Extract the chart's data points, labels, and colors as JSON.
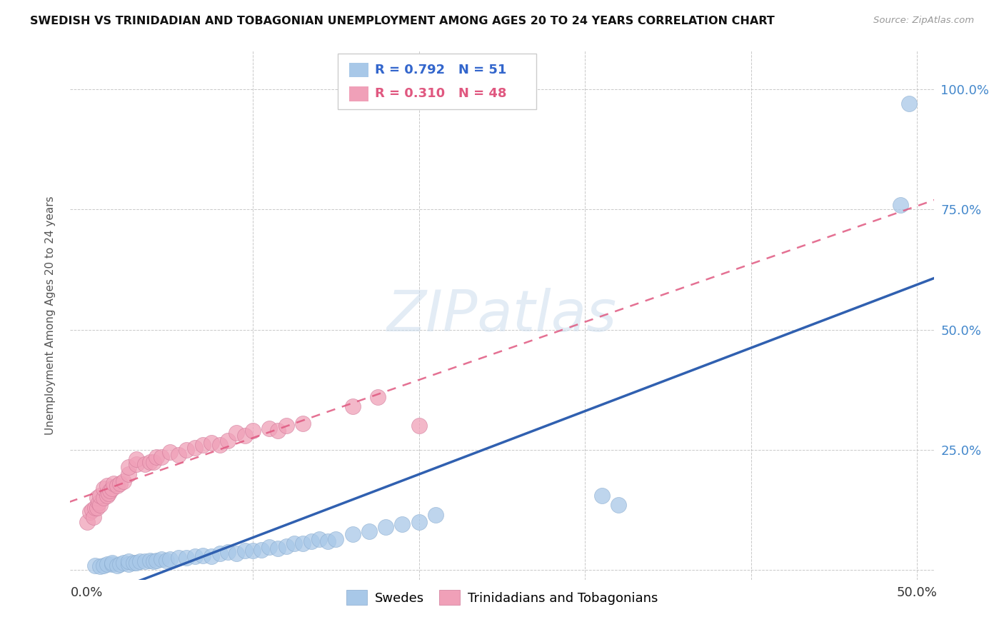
{
  "title": "SWEDISH VS TRINIDADIAN AND TOBAGONIAN UNEMPLOYMENT AMONG AGES 20 TO 24 YEARS CORRELATION CHART",
  "source": "Source: ZipAtlas.com",
  "ylabel": "Unemployment Among Ages 20 to 24 years",
  "legend_r_blue": "R = 0.792",
  "legend_n_blue": "N = 51",
  "legend_r_pink": "R = 0.310",
  "legend_n_pink": "N = 48",
  "legend_label_blue": "Swedes",
  "legend_label_pink": "Trinidadians and Tobagonians",
  "blue_color": "#A8C8E8",
  "pink_color": "#F0A0B8",
  "blue_line_color": "#3060B0",
  "pink_line_color": "#E05880",
  "background_color": "#FFFFFF",
  "grid_color": "#BBBBBB",
  "watermark": "ZIPatlas",
  "blue_x": [
    0.005,
    0.008,
    0.01,
    0.012,
    0.015,
    0.015,
    0.018,
    0.02,
    0.022,
    0.025,
    0.025,
    0.028,
    0.03,
    0.032,
    0.035,
    0.038,
    0.04,
    0.042,
    0.045,
    0.048,
    0.05,
    0.055,
    0.06,
    0.065,
    0.07,
    0.075,
    0.08,
    0.085,
    0.09,
    0.095,
    0.1,
    0.105,
    0.11,
    0.115,
    0.12,
    0.125,
    0.13,
    0.135,
    0.14,
    0.145,
    0.15,
    0.16,
    0.17,
    0.18,
    0.19,
    0.2,
    0.21,
    0.31,
    0.32,
    0.49,
    0.495
  ],
  "blue_y": [
    0.01,
    0.008,
    0.01,
    0.012,
    0.012,
    0.015,
    0.01,
    0.012,
    0.015,
    0.012,
    0.018,
    0.015,
    0.015,
    0.018,
    0.018,
    0.02,
    0.018,
    0.02,
    0.022,
    0.02,
    0.022,
    0.025,
    0.025,
    0.028,
    0.03,
    0.028,
    0.035,
    0.038,
    0.035,
    0.04,
    0.04,
    0.042,
    0.048,
    0.045,
    0.05,
    0.055,
    0.055,
    0.06,
    0.065,
    0.06,
    0.065,
    0.075,
    0.08,
    0.09,
    0.095,
    0.1,
    0.115,
    0.155,
    0.135,
    0.76,
    0.97
  ],
  "pink_x": [
    0.0,
    0.002,
    0.003,
    0.004,
    0.005,
    0.006,
    0.006,
    0.007,
    0.008,
    0.008,
    0.01,
    0.01,
    0.012,
    0.012,
    0.013,
    0.014,
    0.015,
    0.016,
    0.018,
    0.02,
    0.022,
    0.025,
    0.025,
    0.03,
    0.03,
    0.035,
    0.038,
    0.04,
    0.042,
    0.045,
    0.05,
    0.055,
    0.06,
    0.065,
    0.07,
    0.075,
    0.08,
    0.085,
    0.09,
    0.095,
    0.1,
    0.11,
    0.115,
    0.12,
    0.13,
    0.16,
    0.175,
    0.2
  ],
  "pink_y": [
    0.1,
    0.12,
    0.125,
    0.11,
    0.13,
    0.13,
    0.15,
    0.14,
    0.135,
    0.155,
    0.15,
    0.17,
    0.155,
    0.175,
    0.16,
    0.165,
    0.17,
    0.18,
    0.175,
    0.18,
    0.185,
    0.2,
    0.215,
    0.22,
    0.23,
    0.22,
    0.225,
    0.225,
    0.235,
    0.235,
    0.245,
    0.24,
    0.25,
    0.255,
    0.26,
    0.265,
    0.26,
    0.27,
    0.285,
    0.28,
    0.29,
    0.295,
    0.29,
    0.3,
    0.305,
    0.34,
    0.36,
    0.3
  ]
}
